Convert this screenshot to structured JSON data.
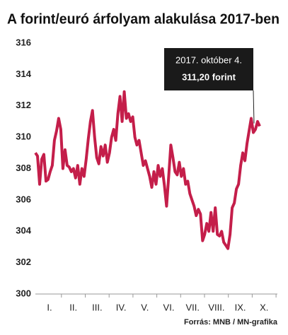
{
  "chart_data": {
    "type": "line",
    "title": "A forint/euró árfolyam alakulása 2017-ben",
    "x_axis_labels": [
      "I.",
      "II.",
      "III.",
      "IV.",
      "V.",
      "VI.",
      "VII.",
      "VIII.",
      "IX.",
      "X."
    ],
    "series": [
      {
        "name": "forint/euró",
        "color": "#c41e4a",
        "values": [
          309.0,
          308.8,
          307.0,
          308.6,
          308.9,
          307.2,
          307.3,
          307.8,
          308.2,
          309.8,
          310.4,
          311.2,
          310.5,
          308.0,
          309.2,
          308.2,
          308.1,
          307.8,
          308.0,
          307.4,
          308.2,
          307.0,
          308.0,
          307.5,
          308.6,
          309.9,
          311.0,
          311.7,
          310.0,
          308.7,
          308.3,
          309.4,
          308.8,
          309.5,
          308.4,
          309.0,
          310.0,
          310.5,
          309.8,
          311.5,
          312.6,
          311.0,
          312.9,
          311.2,
          311.5,
          311.0,
          311.3,
          310.0,
          309.5,
          309.8,
          309.0,
          308.2,
          308.5,
          308.0,
          307.5,
          306.8,
          307.8,
          307.0,
          308.2,
          307.5,
          308.0,
          306.9,
          305.6,
          307.5,
          309.5,
          308.7,
          307.8,
          307.6,
          308.4,
          307.5,
          308.0,
          307.0,
          307.2,
          306.4,
          306.0,
          305.6,
          305.0,
          305.4,
          305.1,
          303.4,
          303.8,
          304.5,
          304.0,
          305.2,
          304.0,
          305.5,
          303.8,
          303.7,
          304.0,
          303.3,
          303.1,
          302.9,
          303.8,
          305.5,
          305.8,
          306.7,
          307.0,
          308.2,
          309.0,
          308.5,
          309.6,
          310.4,
          311.2,
          310.3,
          310.5,
          311.0,
          310.7
        ]
      }
    ],
    "ylim": [
      300,
      316
    ],
    "yticks": [
      300,
      302,
      304,
      306,
      308,
      310,
      312,
      314,
      316
    ],
    "annotation": {
      "date": "2017. október 4.",
      "value_label": "311,20 forint"
    },
    "source": "Forrás: MNB / MN-grafika"
  }
}
